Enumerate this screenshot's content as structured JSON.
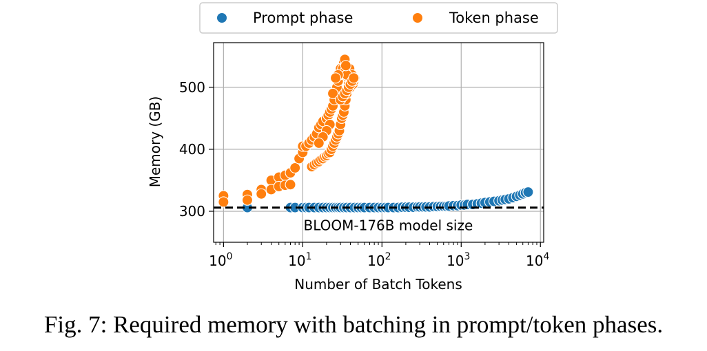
{
  "chart_data": {
    "type": "scatter",
    "title": "",
    "xlabel": "Number of Batch Tokens",
    "ylabel": "Memory (GB)",
    "xscale": "log",
    "xlim": [
      0.75,
      11000
    ],
    "ylim": [
      250,
      572
    ],
    "xticks": [
      {
        "value": 1,
        "base": "10",
        "exp": "0"
      },
      {
        "value": 10,
        "base": "10",
        "exp": "1"
      },
      {
        "value": 100,
        "base": "10",
        "exp": "2"
      },
      {
        "value": 1000,
        "base": "10",
        "exp": "3"
      },
      {
        "value": 10000,
        "base": "10",
        "exp": "4"
      }
    ],
    "yticks": [
      {
        "value": 300,
        "label": "300"
      },
      {
        "value": 400,
        "label": "400"
      },
      {
        "value": 500,
        "label": "500"
      }
    ],
    "grid": true,
    "legend": {
      "position": "top-center, outside plot"
    },
    "series": [
      {
        "name": "Prompt phase",
        "color": "#1f77b4",
        "points": [
          [
            2,
            306
          ],
          [
            7,
            306
          ],
          [
            8,
            306
          ],
          [
            10,
            306
          ],
          [
            11,
            306
          ],
          [
            12,
            306
          ],
          [
            14,
            306
          ],
          [
            16,
            306
          ],
          [
            18,
            306
          ],
          [
            20,
            306
          ],
          [
            22,
            306
          ],
          [
            24,
            306
          ],
          [
            26,
            306
          ],
          [
            28,
            306
          ],
          [
            30,
            306
          ],
          [
            33,
            306
          ],
          [
            36,
            306
          ],
          [
            40,
            306
          ],
          [
            45,
            306
          ],
          [
            50,
            306
          ],
          [
            55,
            306
          ],
          [
            60,
            306
          ],
          [
            70,
            306
          ],
          [
            80,
            306
          ],
          [
            90,
            306
          ],
          [
            100,
            306
          ],
          [
            110,
            306
          ],
          [
            120,
            306
          ],
          [
            140,
            306
          ],
          [
            160,
            306
          ],
          [
            180,
            306.5
          ],
          [
            200,
            306.5
          ],
          [
            220,
            306.5
          ],
          [
            250,
            306.5
          ],
          [
            280,
            307
          ],
          [
            300,
            307
          ],
          [
            330,
            307
          ],
          [
            360,
            307
          ],
          [
            400,
            307
          ],
          [
            450,
            307.5
          ],
          [
            500,
            307.5
          ],
          [
            550,
            308
          ],
          [
            600,
            308
          ],
          [
            650,
            308
          ],
          [
            700,
            308.5
          ],
          [
            800,
            309
          ],
          [
            900,
            309
          ],
          [
            1000,
            310
          ],
          [
            1100,
            310
          ],
          [
            1200,
            311
          ],
          [
            1400,
            311
          ],
          [
            1600,
            312
          ],
          [
            1800,
            313
          ],
          [
            2000,
            314
          ],
          [
            2300,
            315
          ],
          [
            2600,
            316
          ],
          [
            3000,
            317
          ],
          [
            3300,
            318
          ],
          [
            3600,
            319
          ],
          [
            4000,
            320
          ],
          [
            4500,
            322
          ],
          [
            5000,
            324
          ],
          [
            5500,
            326
          ],
          [
            6000,
            328
          ],
          [
            6500,
            330
          ],
          [
            7000,
            331
          ]
        ]
      },
      {
        "name": "Token phase",
        "color": "#ff7f0e",
        "points": [
          [
            1,
            325
          ],
          [
            1,
            315
          ],
          [
            2,
            327
          ],
          [
            2,
            318
          ],
          [
            3,
            335
          ],
          [
            3,
            328
          ],
          [
            4,
            350
          ],
          [
            4,
            335
          ],
          [
            5,
            355
          ],
          [
            5,
            340
          ],
          [
            6,
            358
          ],
          [
            6,
            342
          ],
          [
            7,
            362
          ],
          [
            7,
            343
          ],
          [
            8,
            370
          ],
          [
            9,
            385
          ],
          [
            10,
            395
          ],
          [
            10,
            405
          ],
          [
            11,
            405
          ],
          [
            12,
            410
          ],
          [
            13,
            372
          ],
          [
            13,
            415
          ],
          [
            14,
            375
          ],
          [
            14,
            420
          ],
          [
            15,
            378
          ],
          [
            15,
            425
          ],
          [
            16,
            380
          ],
          [
            16,
            435
          ],
          [
            17,
            383
          ],
          [
            17,
            440
          ],
          [
            18,
            385
          ],
          [
            18,
            445
          ],
          [
            19,
            388
          ],
          [
            20,
            390
          ],
          [
            20,
            450
          ],
          [
            21,
            393
          ],
          [
            21,
            455
          ],
          [
            22,
            395
          ],
          [
            22,
            460
          ],
          [
            23,
            400
          ],
          [
            23,
            465
          ],
          [
            24,
            405
          ],
          [
            24,
            470
          ],
          [
            25,
            410
          ],
          [
            25,
            480
          ],
          [
            26,
            415
          ],
          [
            26,
            490
          ],
          [
            27,
            420
          ],
          [
            27,
            500
          ],
          [
            28,
            425
          ],
          [
            28,
            510
          ],
          [
            29,
            430
          ],
          [
            29,
            520
          ],
          [
            30,
            440
          ],
          [
            30,
            525
          ],
          [
            31,
            450
          ],
          [
            31,
            530
          ],
          [
            32,
            455
          ],
          [
            32,
            535
          ],
          [
            33,
            460
          ],
          [
            33,
            540
          ],
          [
            34,
            470
          ],
          [
            34,
            545
          ],
          [
            35,
            480
          ],
          [
            35,
            520
          ],
          [
            36,
            490
          ],
          [
            36,
            530
          ],
          [
            37,
            500
          ],
          [
            37,
            515
          ],
          [
            38,
            510
          ],
          [
            38,
            505
          ],
          [
            39,
            520
          ],
          [
            39,
            530
          ],
          [
            40,
            500
          ],
          [
            40,
            510
          ],
          [
            41,
            515
          ],
          [
            42,
            520
          ],
          [
            43,
            505
          ],
          [
            44,
            510
          ],
          [
            45,
            515
          ],
          [
            30,
            530
          ],
          [
            32,
            530
          ],
          [
            34,
            525
          ],
          [
            36,
            520
          ],
          [
            28,
            520
          ],
          [
            26,
            515
          ],
          [
            24,
            490
          ],
          [
            22,
            440
          ],
          [
            20,
            430
          ],
          [
            18,
            420
          ],
          [
            16,
            410
          ],
          [
            30,
            480
          ],
          [
            32,
            485
          ],
          [
            34,
            490
          ],
          [
            36,
            495
          ],
          [
            38,
            500
          ],
          [
            40,
            505
          ],
          [
            42,
            510
          ],
          [
            44,
            515
          ],
          [
            35,
            535
          ]
        ]
      }
    ],
    "annotations": [
      {
        "type": "hline",
        "y": 306,
        "style": "dashed",
        "color": "#000000"
      },
      {
        "type": "text",
        "text": "BLOOM-176B model size",
        "x": 120,
        "y": 294
      }
    ]
  },
  "caption": "Fig. 7: Required memory with batching in prompt/token phases."
}
